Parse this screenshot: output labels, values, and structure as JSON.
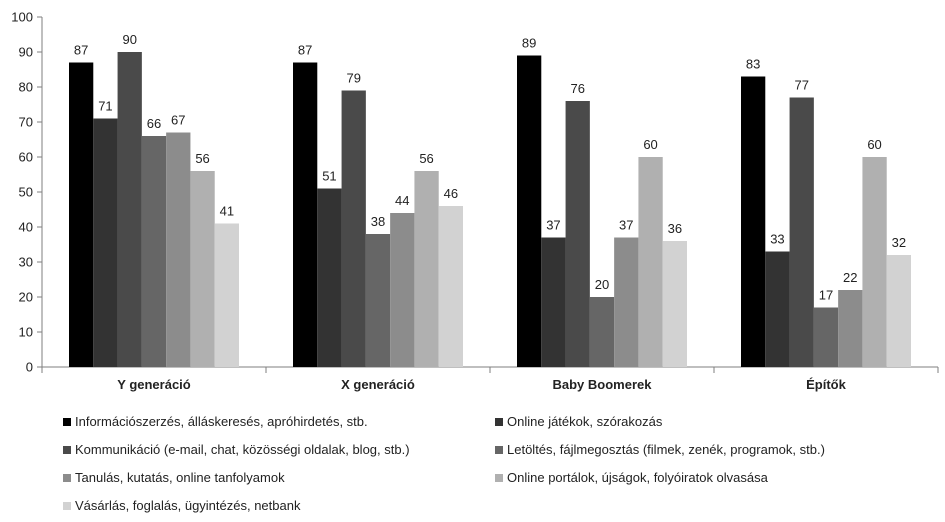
{
  "chart_data": {
    "type": "bar",
    "categories": [
      "Y generáció",
      "X generáció",
      "Baby Boomerek",
      "Építők"
    ],
    "ylim": [
      0,
      100
    ],
    "yticks": [
      0,
      10,
      20,
      30,
      40,
      50,
      60,
      70,
      80,
      90,
      100
    ],
    "grid": false,
    "legend_position": "bottom",
    "title": "",
    "xlabel": "",
    "ylabel": "",
    "series": [
      {
        "name": "Információszerzés, álláskeresés, apróhirdetés, stb.",
        "color": "#000000",
        "values": [
          87,
          87,
          89,
          83
        ]
      },
      {
        "name": "Online játékok, szórakozás",
        "color": "#333333",
        "values": [
          71,
          51,
          37,
          33
        ]
      },
      {
        "name": "Kommunikáció (e-mail, chat, közösségi oldalak, blog, stb.)",
        "color": "#4a4a4a",
        "values": [
          90,
          79,
          76,
          77
        ]
      },
      {
        "name": "Letöltés, fájlmegosztás (filmek, zenék, programok, stb.)",
        "color": "#666666",
        "values": [
          66,
          38,
          20,
          17
        ]
      },
      {
        "name": "Tanulás, kutatás, online tanfolyamok",
        "color": "#8c8c8c",
        "values": [
          67,
          44,
          37,
          22
        ]
      },
      {
        "name": "Online portálok, újságok, folyóiratok olvasása",
        "color": "#b0b0b0",
        "values": [
          56,
          56,
          60,
          60
        ]
      },
      {
        "name": "Vásárlás, foglalás, ügyintézés, netbank",
        "color": "#d2d2d2",
        "values": [
          41,
          46,
          36,
          32
        ]
      }
    ]
  }
}
